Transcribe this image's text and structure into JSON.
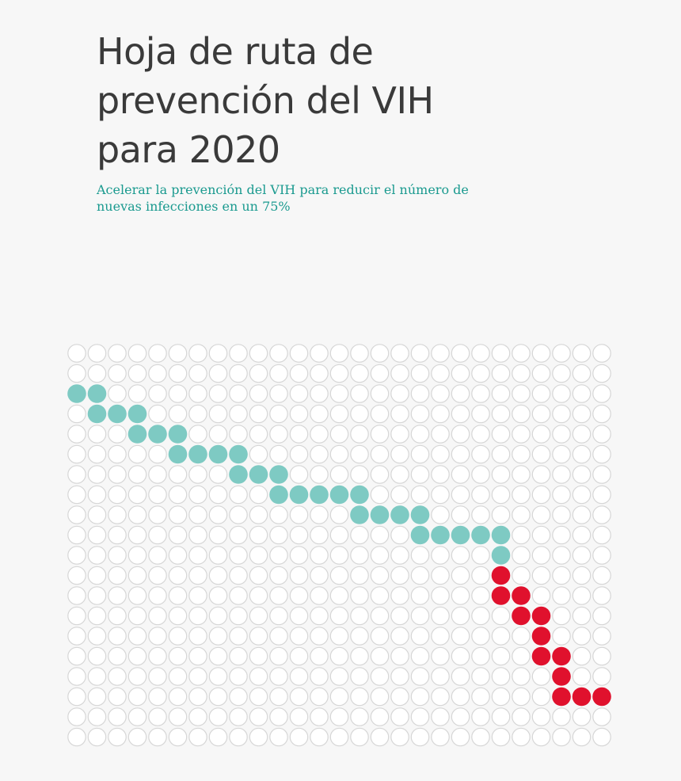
{
  "cover": {
    "title_lines": [
      "Hoja de ruta de",
      "prevención del VIH",
      "para 2020"
    ],
    "subtitle_lines": [
      "Acelerar la prevención del VIH para reducir el número de",
      "nuevas infecciones en un 75%"
    ]
  },
  "colors": {
    "background": "#f7f7f7",
    "title": "#3a3a3a",
    "subtitle": "#1a9a8f",
    "dot_empty_stroke": "#d6d6d6",
    "dot_empty_fill": "#ffffff",
    "dot_teal": "#7ecac3",
    "dot_red": "#e0112d"
  },
  "dot_grid": {
    "columns": 27,
    "rows": 20,
    "teal_dots": [
      [
        2,
        0
      ],
      [
        2,
        1
      ],
      [
        3,
        1
      ],
      [
        3,
        2
      ],
      [
        3,
        3
      ],
      [
        4,
        3
      ],
      [
        4,
        4
      ],
      [
        4,
        5
      ],
      [
        5,
        5
      ],
      [
        5,
        6
      ],
      [
        5,
        7
      ],
      [
        5,
        8
      ],
      [
        6,
        8
      ],
      [
        6,
        9
      ],
      [
        6,
        10
      ],
      [
        7,
        10
      ],
      [
        7,
        11
      ],
      [
        7,
        12
      ],
      [
        7,
        13
      ],
      [
        7,
        14
      ],
      [
        8,
        14
      ],
      [
        8,
        15
      ],
      [
        8,
        16
      ],
      [
        8,
        17
      ],
      [
        9,
        17
      ],
      [
        9,
        18
      ],
      [
        9,
        19
      ],
      [
        9,
        20
      ],
      [
        9,
        21
      ],
      [
        10,
        21
      ]
    ],
    "red_dots": [
      [
        11,
        21
      ],
      [
        12,
        21
      ],
      [
        12,
        22
      ],
      [
        13,
        22
      ],
      [
        13,
        23
      ],
      [
        14,
        23
      ],
      [
        15,
        23
      ],
      [
        15,
        24
      ],
      [
        16,
        24
      ],
      [
        17,
        24
      ],
      [
        17,
        25
      ],
      [
        17,
        26
      ]
    ]
  }
}
